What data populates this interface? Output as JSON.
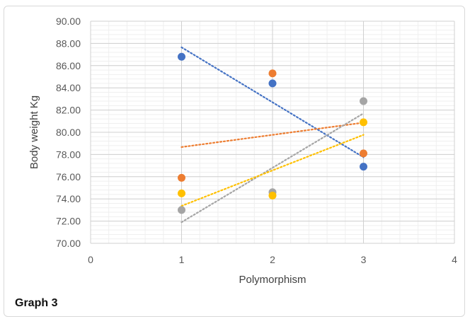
{
  "caption": "Graph 3",
  "chart_data": {
    "type": "scatter",
    "xlabel": "Polymorphism",
    "ylabel": "Body weight Kg",
    "xlim": [
      0,
      4
    ],
    "ylim": [
      70,
      90
    ],
    "x_ticks": [
      "0",
      "1",
      "2",
      "3",
      "4"
    ],
    "y_ticks": [
      "70.00",
      "72.00",
      "74.00",
      "76.00",
      "78.00",
      "80.00",
      "82.00",
      "84.00",
      "86.00",
      "88.00",
      "90.00"
    ],
    "grid": true,
    "trendlines": "linear, dotted",
    "series": [
      {
        "color": "#4472C4",
        "points": [
          [
            1,
            86.8
          ],
          [
            2,
            84.4
          ],
          [
            3,
            76.9
          ]
        ]
      },
      {
        "color": "#ED7D31",
        "points": [
          [
            1,
            75.9
          ],
          [
            2,
            85.3
          ],
          [
            3,
            78.1
          ]
        ]
      },
      {
        "color": "#A5A5A5",
        "points": [
          [
            1,
            73.0
          ],
          [
            2,
            74.6
          ],
          [
            3,
            82.8
          ]
        ]
      },
      {
        "color": "#FFC000",
        "points": [
          [
            1,
            74.5
          ],
          [
            2,
            74.3
          ],
          [
            3,
            80.9
          ]
        ]
      }
    ]
  }
}
